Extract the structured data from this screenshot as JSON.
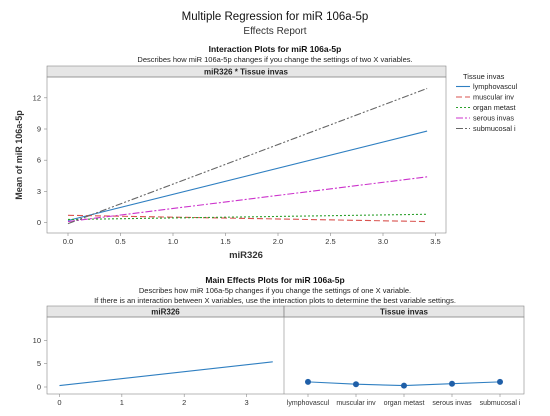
{
  "report": {
    "title": "Multiple Regression for miR 106a-5p",
    "subtitle": "Effects Report"
  },
  "interaction_section": {
    "title": "Interaction Plots for miR 106a-5p",
    "description": "Describes how miR 106a-5p changes if you change the settings of two X variables."
  },
  "main_effects_section": {
    "title": "Main Effects Plots for miR 106a-5p",
    "description_line1": "Describes how miR 106a-5p changes if you change the settings of one X variable.",
    "description_line2": "If there is an interaction between X variables, use the interaction plots to determine the best variable settings."
  },
  "colors": {
    "lymphovascul": "#2f7fc1",
    "muscular inv": "#d9534f",
    "organ metast": "#2ca02c",
    "serous invas": "#cc33cc",
    "submucosal i": "#666666",
    "main_line": "#2f7fc1",
    "main_points": "#1f5fa8",
    "panel_header_bg": "#e6e6e6"
  },
  "chart_data": [
    {
      "type": "line",
      "title": "miR326 * Tissue invas",
      "xlabel": "miR326",
      "ylabel": "Mean of miR 106a-5p",
      "xlim": [
        -0.2,
        3.6
      ],
      "ylim": [
        -1,
        14
      ],
      "x_ticks": [
        "0.0",
        "0.5",
        "1.0",
        "1.5",
        "2.0",
        "2.5",
        "3.0",
        "3.5"
      ],
      "y_ticks": [
        "0",
        "3",
        "6",
        "9",
        "12"
      ],
      "grid": false,
      "legend_title": "Tissue invas",
      "legend_position": "right",
      "series": [
        {
          "name": "lymphovascul",
          "dash": "solid",
          "x": [
            0,
            3.42
          ],
          "y": [
            0.2,
            8.8
          ]
        },
        {
          "name": "muscular inv",
          "dash": "dashed",
          "x": [
            0,
            3.42
          ],
          "y": [
            0.7,
            0.1
          ]
        },
        {
          "name": "organ metast",
          "dash": "dotted",
          "x": [
            0,
            3.42
          ],
          "y": [
            0.3,
            0.8
          ]
        },
        {
          "name": "serous invas",
          "dash": "dashdot",
          "x": [
            0,
            3.42
          ],
          "y": [
            0.1,
            4.4
          ]
        },
        {
          "name": "submucosal i",
          "dash": "dashdotdot",
          "x": [
            0,
            3.42
          ],
          "y": [
            -0.1,
            12.9
          ]
        }
      ]
    },
    {
      "type": "line",
      "title": "miR326",
      "xlim": [
        -0.2,
        3.6
      ],
      "ylim": [
        -1.5,
        15
      ],
      "x_ticks": [
        "0",
        "1",
        "2",
        "3"
      ],
      "y_ticks": [
        "0",
        "5",
        "10"
      ],
      "series": [
        {
          "x": [
            0,
            3.42
          ],
          "y": [
            0.3,
            5.4
          ]
        }
      ]
    },
    {
      "type": "line",
      "title": "Tissue invas",
      "categories": [
        "lymphovascul",
        "muscular inv",
        "organ metast",
        "serous invas",
        "submucosal i"
      ],
      "ylim": [
        -1.5,
        15
      ],
      "values": [
        1.1,
        0.6,
        0.3,
        0.7,
        1.1
      ]
    }
  ]
}
